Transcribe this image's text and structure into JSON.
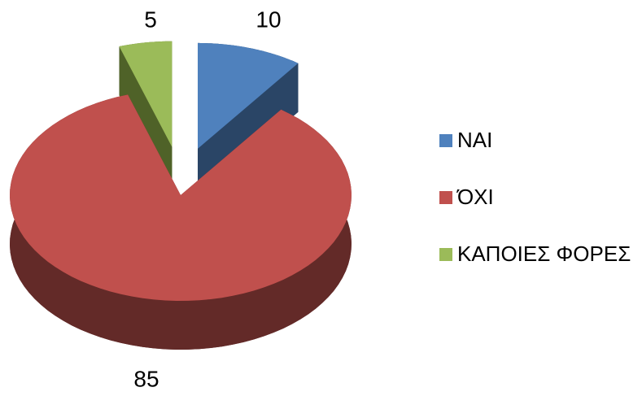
{
  "chart_data": {
    "type": "pie",
    "categories": [
      "ΝΑΙ",
      "ΌΧΙ",
      "ΚΑΠΟΙΕΣ ΦΟΡΕΣ"
    ],
    "values": [
      10,
      85,
      5
    ],
    "colors": [
      "#4f81bd",
      "#c0504d",
      "#9bbb59"
    ],
    "side_colors": [
      "#2a4566",
      "#632a28",
      "#4f6228"
    ],
    "legend": "right"
  }
}
